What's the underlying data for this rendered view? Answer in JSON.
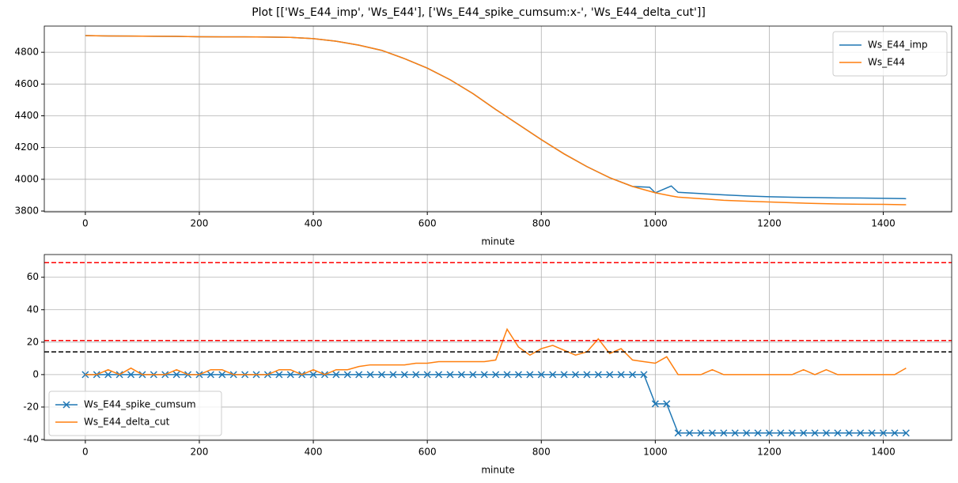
{
  "title": "Plot [['Ws_E44_imp', 'Ws_E44'], ['Ws_E44_spike_cumsum:x-', 'Ws_E44_delta_cut']]",
  "chart_data": [
    {
      "type": "line",
      "xlabel": "minute",
      "grid": true,
      "legend": "upper right",
      "xlim": [
        -72,
        1520
      ],
      "xticks": [
        0,
        200,
        400,
        600,
        800,
        1000,
        1200,
        1400
      ],
      "ylim": [
        3795,
        4965
      ],
      "yticks": [
        3800,
        4000,
        4200,
        4400,
        4600,
        4800
      ],
      "x": [
        0,
        40,
        80,
        120,
        160,
        200,
        240,
        280,
        320,
        360,
        400,
        440,
        480,
        520,
        560,
        600,
        640,
        680,
        720,
        760,
        800,
        840,
        880,
        920,
        960,
        990,
        1000,
        1028,
        1040,
        1080,
        1120,
        1160,
        1200,
        1240,
        1280,
        1320,
        1360,
        1400,
        1440
      ],
      "series": [
        {
          "name": "Ws_E44_imp",
          "color": "#1f77b4",
          "values": [
            4905,
            4903,
            4902,
            4901,
            4900,
            4898,
            4897,
            4897,
            4896,
            4894,
            4886,
            4870,
            4845,
            4812,
            4760,
            4700,
            4627,
            4540,
            4440,
            4345,
            4250,
            4160,
            4080,
            4010,
            3955,
            3950,
            3915,
            3958,
            3918,
            3910,
            3902,
            3895,
            3890,
            3887,
            3885,
            3883,
            3882,
            3880,
            3878
          ]
        },
        {
          "name": "Ws_E44",
          "color": "#ff7f0e",
          "values": [
            4905,
            4903,
            4902,
            4901,
            4900,
            4898,
            4897,
            4897,
            4896,
            4894,
            4886,
            4870,
            4845,
            4812,
            4760,
            4700,
            4627,
            4540,
            4440,
            4345,
            4250,
            4160,
            4080,
            4010,
            3955,
            3925,
            3915,
            3895,
            3888,
            3878,
            3868,
            3862,
            3857,
            3852,
            3848,
            3845,
            3843,
            3842,
            3840
          ]
        }
      ]
    },
    {
      "type": "line",
      "xlabel": "minute",
      "grid": true,
      "legend": "lower left",
      "xlim": [
        -72,
        1520
      ],
      "xticks": [
        0,
        200,
        400,
        600,
        800,
        1000,
        1200,
        1400
      ],
      "ylim": [
        -40.5,
        74
      ],
      "yticks": [
        -40,
        -20,
        0,
        20,
        40,
        60
      ],
      "hlines": [
        {
          "value": 69,
          "color": "#ff0000"
        },
        {
          "value": 21,
          "color": "#ff0000"
        },
        {
          "value": 14,
          "color": "#000000"
        }
      ],
      "x": [
        0,
        20,
        40,
        60,
        80,
        100,
        120,
        140,
        160,
        180,
        200,
        220,
        240,
        260,
        280,
        300,
        320,
        340,
        360,
        380,
        400,
        420,
        440,
        460,
        480,
        500,
        520,
        540,
        560,
        580,
        600,
        620,
        640,
        660,
        680,
        700,
        720,
        740,
        760,
        780,
        800,
        820,
        840,
        860,
        880,
        900,
        920,
        940,
        960,
        980,
        1000,
        1020,
        1040,
        1060,
        1080,
        1100,
        1120,
        1140,
        1160,
        1180,
        1200,
        1220,
        1240,
        1260,
        1280,
        1300,
        1320,
        1340,
        1360,
        1380,
        1400,
        1420,
        1440
      ],
      "series": [
        {
          "name": "Ws_E44_spike_cumsum",
          "color": "#1f77b4",
          "marker": "x",
          "values": [
            0,
            0,
            0,
            0,
            0,
            0,
            0,
            0,
            0,
            0,
            0,
            0,
            0,
            0,
            0,
            0,
            0,
            0,
            0,
            0,
            0,
            0,
            0,
            0,
            0,
            0,
            0,
            0,
            0,
            0,
            0,
            0,
            0,
            0,
            0,
            0,
            0,
            0,
            0,
            0,
            0,
            0,
            0,
            0,
            0,
            0,
            0,
            0,
            0,
            0,
            -18,
            -18,
            -36,
            -36,
            -36,
            -36,
            -36,
            -36,
            -36,
            -36,
            -36,
            -36,
            -36,
            -36,
            -36,
            -36,
            -36,
            -36,
            -36,
            -36,
            -36,
            -36,
            -36
          ]
        },
        {
          "name": "Ws_E44_delta_cut",
          "color": "#ff7f0e",
          "values": [
            0,
            0,
            3,
            0,
            4,
            0,
            0,
            0,
            3,
            0,
            0,
            3,
            3,
            0,
            0,
            0,
            0,
            3,
            3,
            0,
            3,
            0,
            3,
            3,
            5,
            6,
            6,
            6,
            6,
            7,
            7,
            8,
            8,
            8,
            8,
            8,
            9,
            28,
            17,
            12,
            16,
            18,
            15,
            12,
            14,
            22,
            13,
            16,
            9,
            8,
            7,
            11,
            0,
            0,
            0,
            3,
            0,
            0,
            0,
            0,
            0,
            0,
            0,
            3,
            0,
            3,
            0,
            0,
            0,
            0,
            0,
            0,
            4
          ]
        }
      ]
    }
  ]
}
